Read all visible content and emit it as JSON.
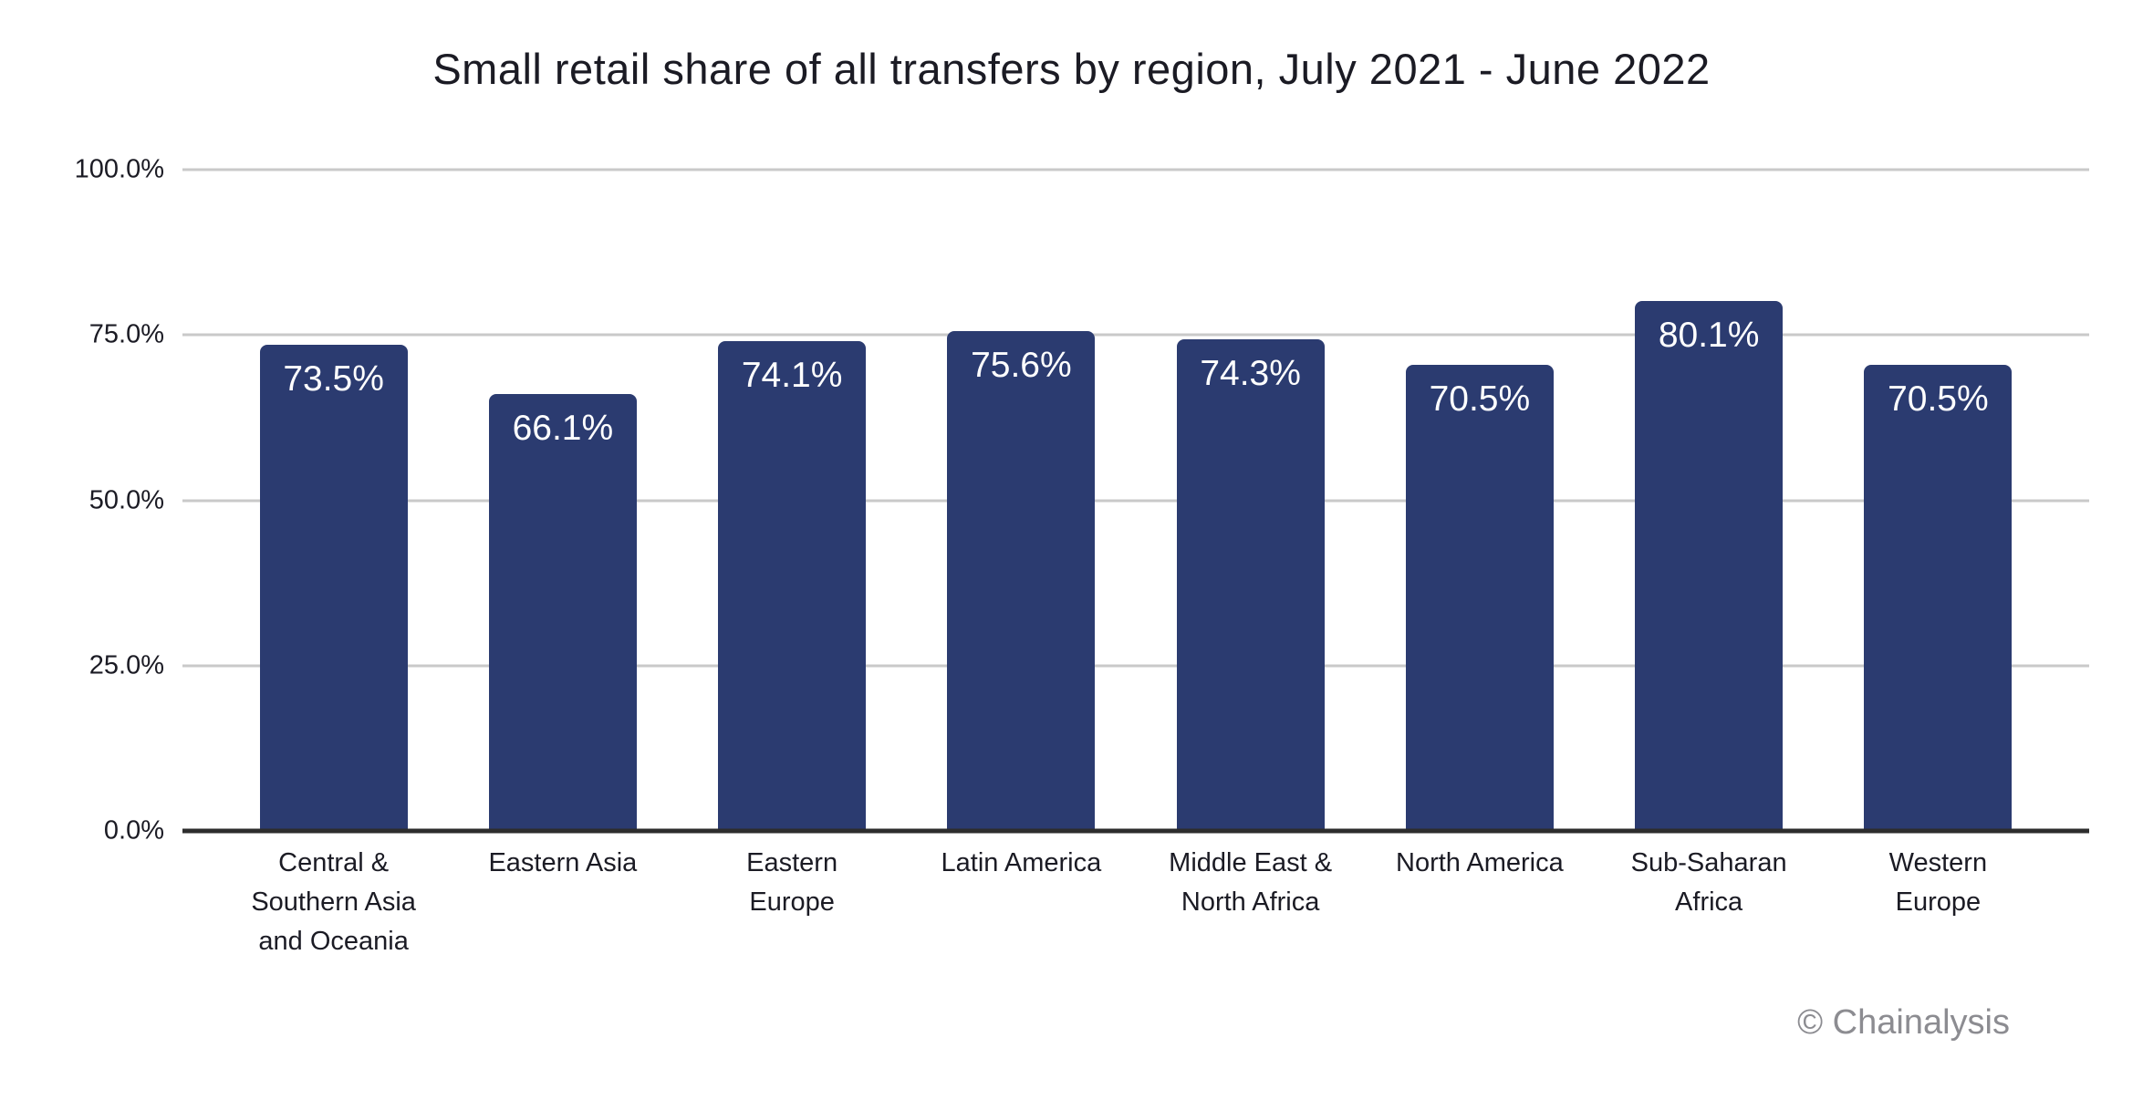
{
  "watermark": "© Chainalysis",
  "colors": {
    "bar": "#2b3b70",
    "grid": "#c9c9c9",
    "axis": "#2d2d2d",
    "text": "#1b1b24",
    "value_label": "#ffffff",
    "watermark": "#8c8c91",
    "background": "#ffffff"
  },
  "chart_data": {
    "type": "bar",
    "title": "Small retail share of all transfers by region, July 2021 - June 2022",
    "xlabel": "",
    "ylabel": "",
    "ylim": [
      0,
      100
    ],
    "grid": true,
    "legend": false,
    "categories": [
      "Central & Southern Asia and Oceania",
      "Eastern Asia",
      "Eastern Europe",
      "Latin America",
      "Middle East & North Africa",
      "North America",
      "Sub-Saharan Africa",
      "Western Europe"
    ],
    "category_lines": [
      [
        "Central &",
        "Southern Asia",
        "and Oceania"
      ],
      [
        "Eastern Asia"
      ],
      [
        "Eastern",
        "Europe"
      ],
      [
        "Latin America"
      ],
      [
        "Middle East &",
        "North Africa"
      ],
      [
        "North America"
      ],
      [
        "Sub-Saharan",
        "Africa"
      ],
      [
        "Western",
        "Europe"
      ]
    ],
    "values": [
      73.5,
      66.1,
      74.1,
      75.6,
      74.3,
      70.5,
      80.1,
      70.5
    ],
    "value_labels": [
      "73.5%",
      "66.1%",
      "74.1%",
      "75.6%",
      "74.3%",
      "70.5%",
      "80.1%",
      "70.5%"
    ],
    "yticks": [
      {
        "value": 0,
        "label": "0.0%"
      },
      {
        "value": 25,
        "label": "25.0%"
      },
      {
        "value": 50,
        "label": "50.0%"
      },
      {
        "value": 75,
        "label": "75.0%"
      },
      {
        "value": 100,
        "label": "100.0%"
      }
    ]
  }
}
